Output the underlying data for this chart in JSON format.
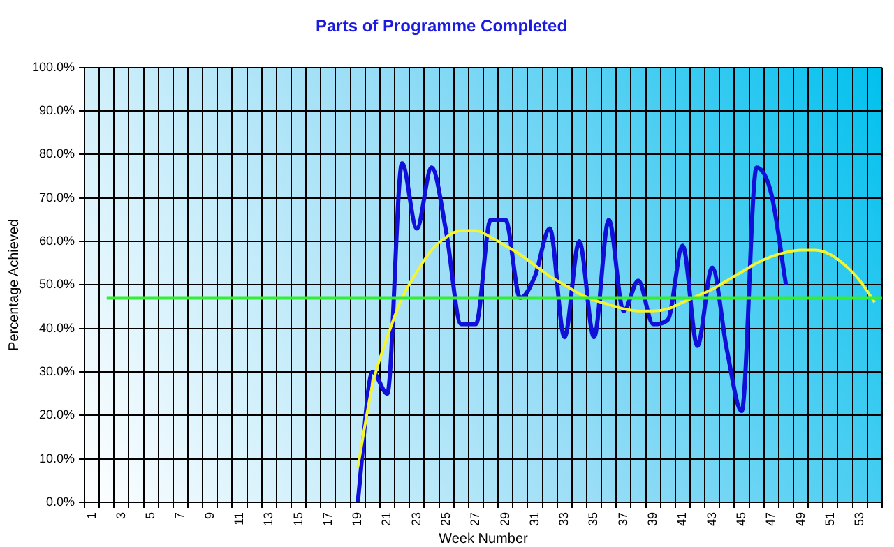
{
  "chart_data": {
    "type": "line",
    "title": "Parts of Programme Completed",
    "xlabel": "Week Number",
    "ylabel": "Percentage Achieved",
    "categories": [
      "1",
      null,
      "3",
      null,
      "5",
      null,
      "7",
      null,
      "9",
      null,
      "11",
      null,
      "13",
      null,
      "15",
      null,
      "17",
      null,
      "19",
      null,
      "21",
      null,
      "23",
      null,
      "25",
      null,
      "27",
      null,
      "29",
      null,
      "31",
      null,
      "33",
      null,
      "35",
      null,
      "37",
      null,
      "39",
      null,
      "41",
      null,
      "43",
      null,
      "45",
      null,
      "47",
      null,
      "49",
      null,
      "51",
      null,
      "53",
      null
    ],
    "series": [
      {
        "color": "#1010d8",
        "values": [
          null,
          null,
          null,
          null,
          null,
          null,
          null,
          null,
          null,
          null,
          null,
          null,
          null,
          null,
          null,
          null,
          null,
          null,
          0,
          30,
          25,
          78,
          63,
          77,
          62,
          41,
          41,
          65,
          65,
          47,
          52,
          63,
          38,
          60,
          38,
          65,
          44,
          51,
          41,
          42,
          59,
          36,
          54,
          35,
          21,
          77,
          71,
          50,
          null,
          null,
          null,
          null,
          null,
          null
        ]
      },
      {
        "type": "line",
        "color": "#f4f430",
        "values": [
          null,
          null,
          null,
          null,
          null,
          null,
          null,
          null,
          null,
          null,
          null,
          null,
          null,
          null,
          null,
          null,
          null,
          null,
          8,
          27,
          38,
          47,
          53,
          58,
          61,
          62.5,
          62.5,
          61,
          59,
          57,
          54.5,
          52,
          50,
          48,
          46.5,
          45.5,
          44.5,
          44,
          44,
          44.5,
          46,
          47.5,
          49,
          51,
          53,
          55,
          56.5,
          57.5,
          58,
          58,
          57,
          54.5,
          51,
          46
        ]
      }
    ],
    "ylim": [
      0,
      100
    ],
    "yticks": [
      {
        "value": 0,
        "label": "0.0%"
      },
      {
        "value": 10,
        "label": "10.0%"
      },
      {
        "value": 20,
        "label": "20.0%"
      },
      {
        "value": 30,
        "label": "30.0%"
      },
      {
        "value": 40,
        "label": "40.0%"
      },
      {
        "value": 50,
        "label": "50.0%"
      },
      {
        "value": 60,
        "label": "60.0%"
      },
      {
        "value": 70,
        "label": "70.0%"
      },
      {
        "value": 80,
        "label": "80.0%"
      },
      {
        "value": 90,
        "label": "90.0%"
      },
      {
        "value": 100,
        "label": "100.0%"
      }
    ],
    "ref_lines": [
      {
        "axis": "y",
        "value": 47,
        "color": "#33ee33"
      }
    ],
    "grid": true,
    "legend": false,
    "marker": "none",
    "line_style": "solid"
  }
}
